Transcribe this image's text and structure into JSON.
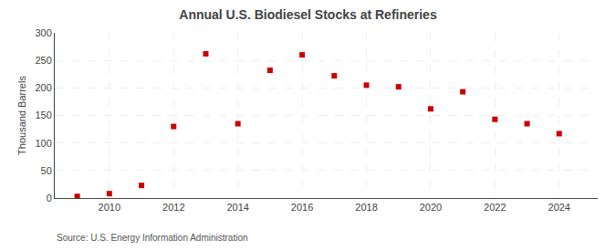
{
  "chart_data": {
    "type": "scatter",
    "title": "Annual U.S. Biodiesel Stocks at Refineries",
    "ylabel": "Thousand Barrels",
    "annotations": [
      "Source: U.S. Energy Information Administration"
    ],
    "x": [
      2009,
      2010,
      2011,
      2012,
      2013,
      2014,
      2015,
      2016,
      2017,
      2018,
      2019,
      2020,
      2021,
      2022,
      2023,
      2024
    ],
    "values": [
      3,
      8,
      23,
      130,
      262,
      135,
      232,
      260,
      222,
      205,
      202,
      162,
      193,
      143,
      135,
      117
    ],
    "color": "#cc0000",
    "marker": "square",
    "xlim": [
      2008.3,
      2025.2
    ],
    "xticks": [
      2010,
      2012,
      2014,
      2016,
      2018,
      2020,
      2022,
      2024
    ],
    "ylim": [
      0,
      300
    ],
    "yticks": [
      0,
      50,
      100,
      150,
      200,
      250,
      300
    ],
    "grid": true
  }
}
